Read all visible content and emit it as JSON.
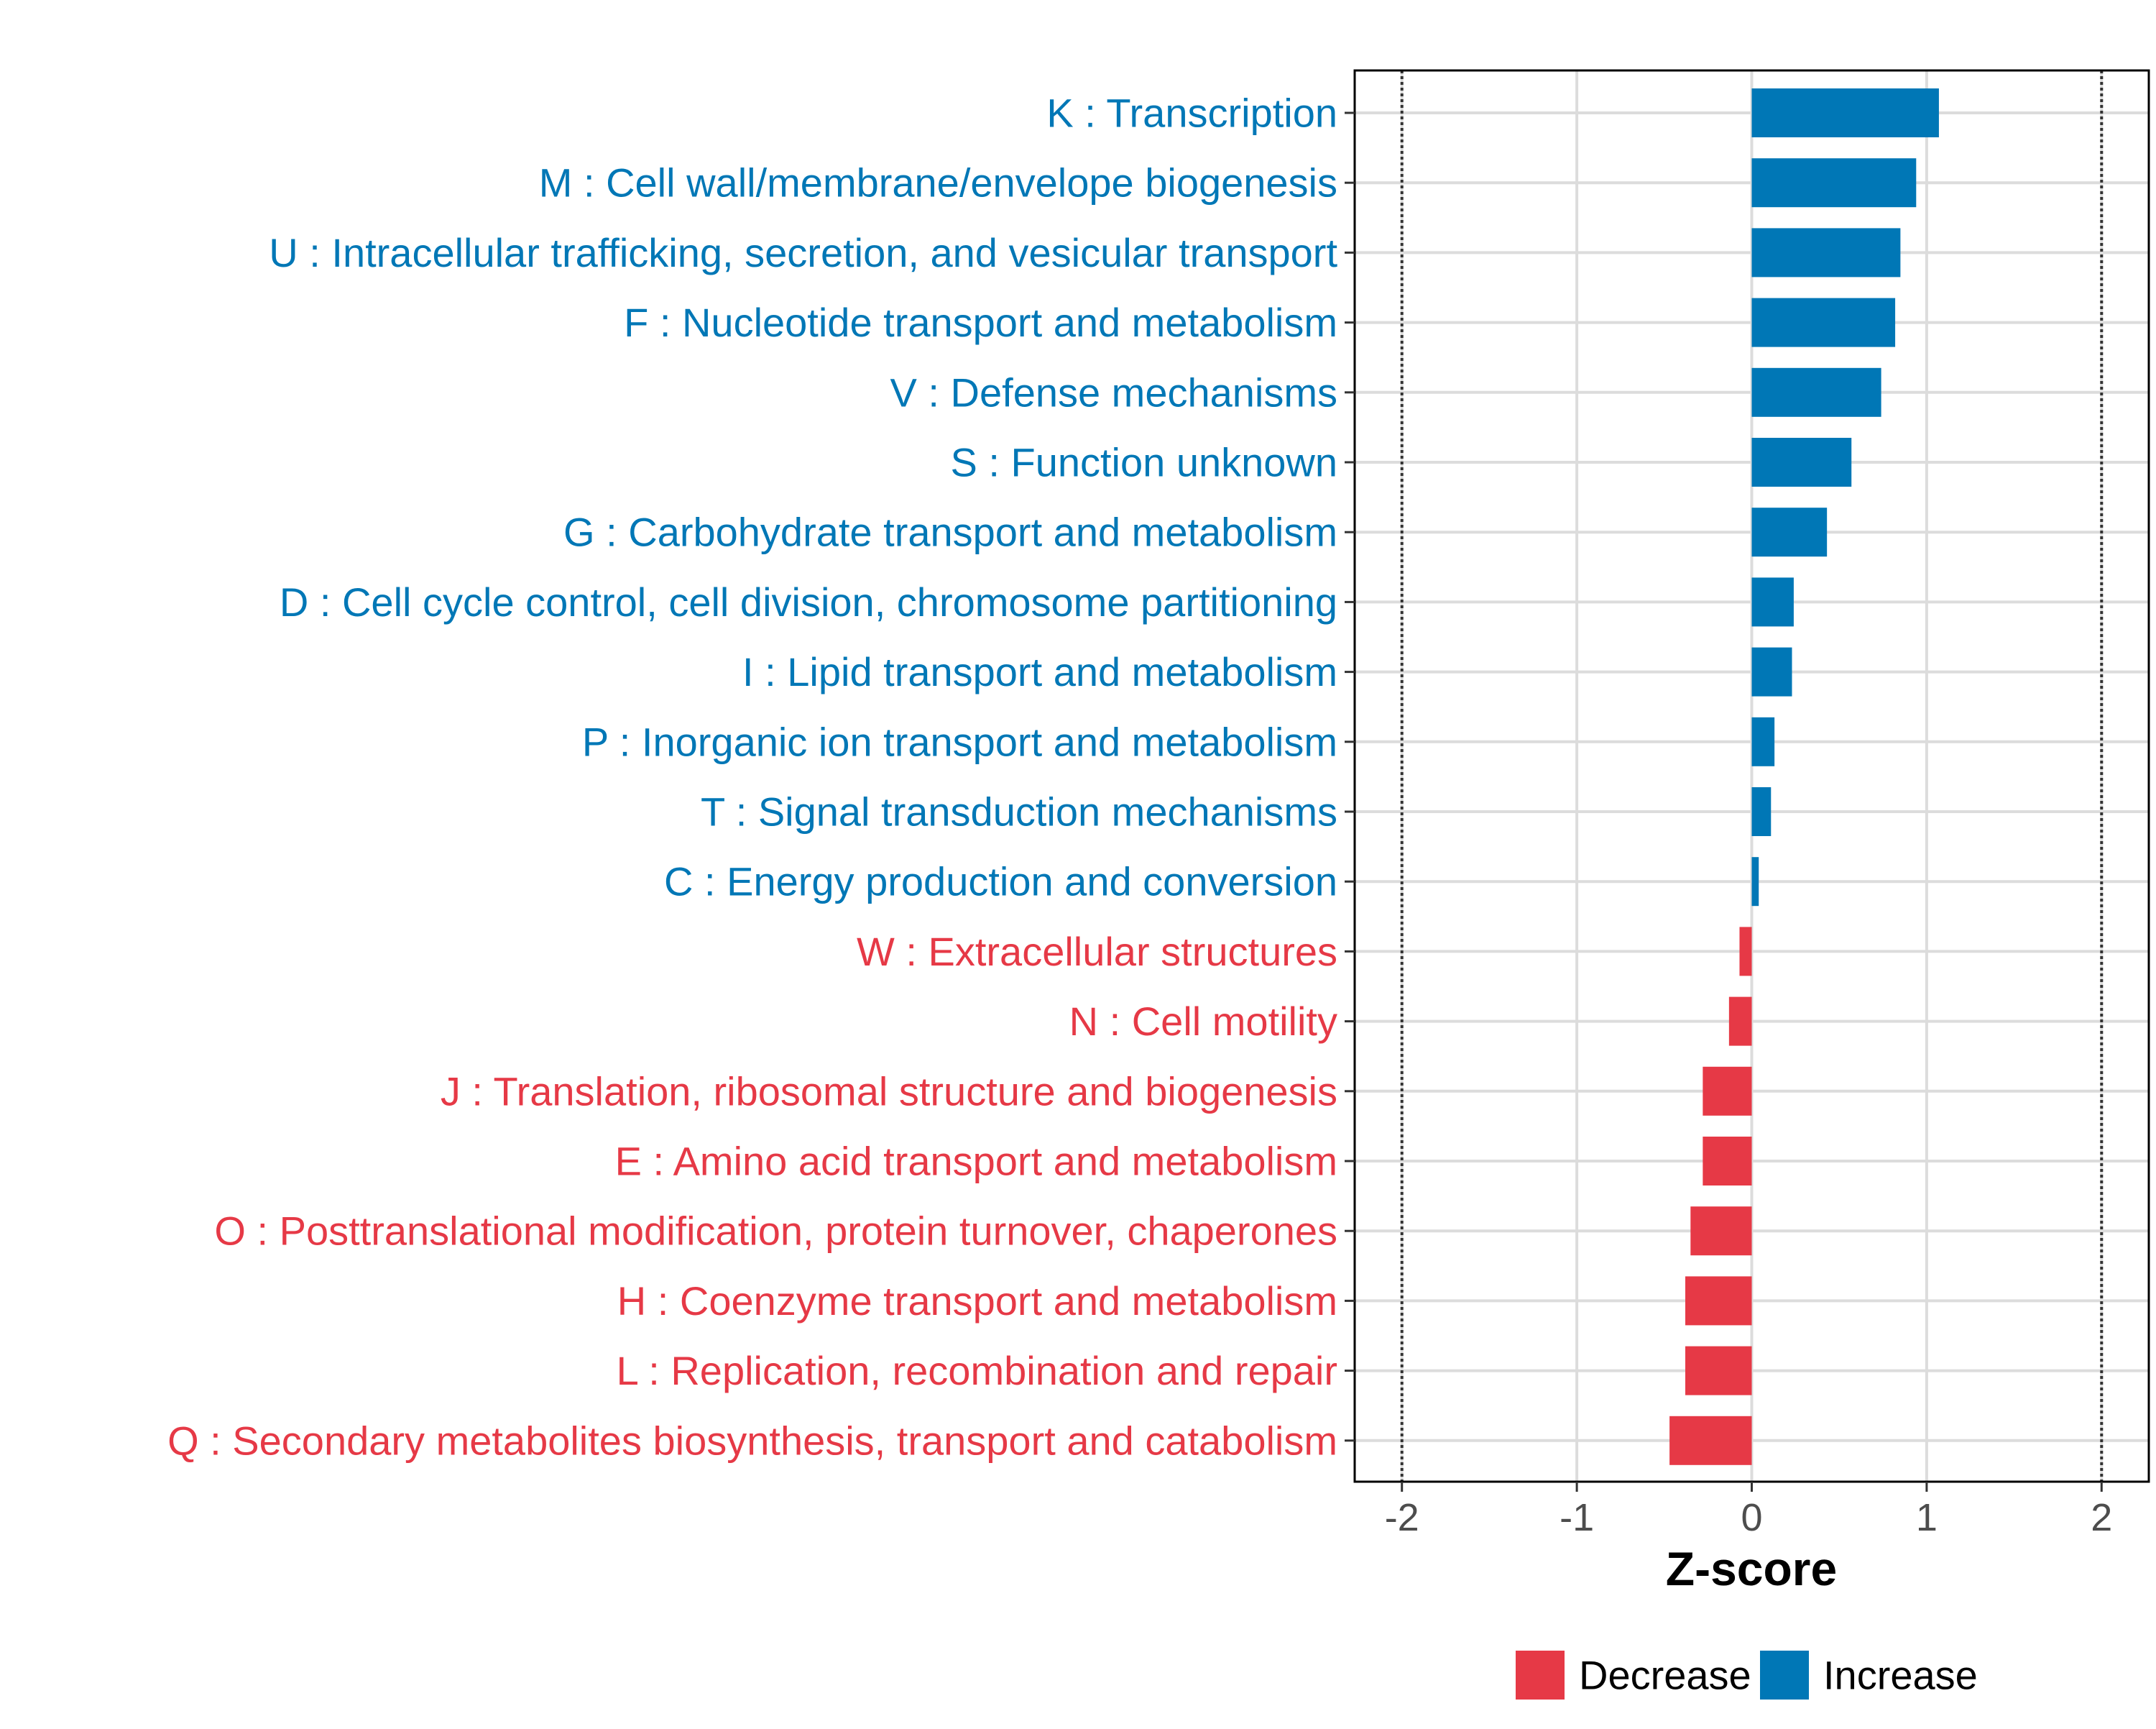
{
  "chart_data": {
    "type": "bar",
    "orientation": "horizontal",
    "xlabel": "Z-score",
    "ylabel": "",
    "xlim": [
      -2.27,
      2.27
    ],
    "x_ticks": [
      -2,
      -1,
      0,
      1,
      2
    ],
    "x_tick_labels": [
      "-2",
      "-1",
      "0",
      "1",
      "2"
    ],
    "reference_lines": [
      -2,
      2
    ],
    "grid": true,
    "legend_position": "bottom",
    "categories": [
      "K : Transcription",
      "M : Cell wall/membrane/envelope biogenesis",
      "U : Intracellular trafficking, secretion, and vesicular transport",
      "F : Nucleotide transport and metabolism",
      "V : Defense mechanisms",
      "S : Function unknown",
      "G : Carbohydrate transport and metabolism",
      "D : Cell cycle control, cell division, chromosome partitioning",
      "I : Lipid transport and metabolism",
      "P : Inorganic ion transport and metabolism",
      "T : Signal transduction mechanisms",
      "C : Energy production and conversion",
      "W : Extracellular structures",
      "N : Cell motility",
      "J : Translation, ribosomal structure and biogenesis",
      "E : Amino acid transport and metabolism",
      "O : Posttranslational modification, protein turnover, chaperones",
      "H : Coenzyme transport and metabolism",
      "L : Replication, recombination and repair",
      "Q : Secondary metabolites biosynthesis, transport and catabolism"
    ],
    "values": [
      1.07,
      0.94,
      0.85,
      0.82,
      0.74,
      0.57,
      0.43,
      0.24,
      0.23,
      0.13,
      0.11,
      0.04,
      -0.07,
      -0.13,
      -0.28,
      -0.28,
      -0.35,
      -0.38,
      -0.38,
      -0.47
    ],
    "series_group": [
      "Increase",
      "Increase",
      "Increase",
      "Increase",
      "Increase",
      "Increase",
      "Increase",
      "Increase",
      "Increase",
      "Increase",
      "Increase",
      "Increase",
      "Decrease",
      "Decrease",
      "Decrease",
      "Decrease",
      "Decrease",
      "Decrease",
      "Decrease",
      "Decrease"
    ],
    "legend": [
      {
        "name": "Decrease",
        "color": "#e63946"
      },
      {
        "name": "Increase",
        "color": "#0077b6"
      }
    ]
  },
  "colors": {
    "Increase": "#0077b6",
    "Decrease": "#e63946",
    "grid": "#dcdcdc",
    "axis": "#000000",
    "reference": "#333333"
  }
}
